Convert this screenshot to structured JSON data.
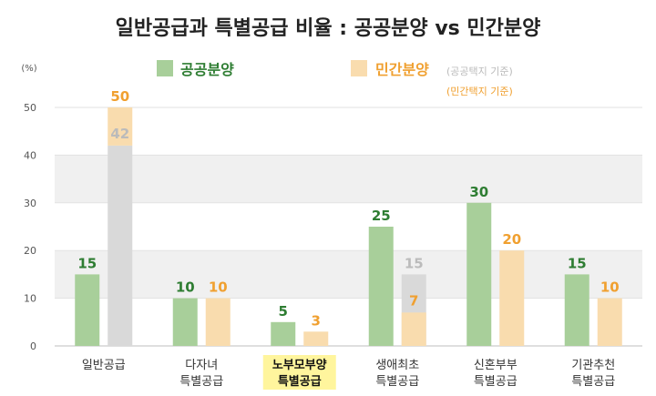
{
  "chart_data": {
    "type": "bar",
    "title": "일반공급과 특별공급 비율 : 공공분양 vs 민간분양",
    "unit_label": "(%)",
    "ylim": [
      0,
      50
    ],
    "yticks": [
      0,
      10,
      20,
      30,
      40,
      50
    ],
    "categories": [
      [
        "일반공급"
      ],
      [
        "다자녀",
        "특별공급"
      ],
      [
        "노부모부양",
        "특별공급"
      ],
      [
        "생애최초",
        "특별공급"
      ],
      [
        "신혼부부",
        "특별공급"
      ],
      [
        "기관추천",
        "특별공급"
      ]
    ],
    "highlight_category_index": 2,
    "series": [
      {
        "name": "공공분양",
        "color": "#a8cf9a",
        "label_color": "#2e7d32",
        "values": [
          15,
          10,
          5,
          25,
          30,
          15
        ]
      },
      {
        "name": "민간분양",
        "legend_note": "(공공택지 기준)",
        "color": "#f9dcae",
        "label_color": "#f0a030",
        "values": [
          50,
          10,
          3,
          7,
          20,
          10
        ],
        "overlay": [
          {
            "category_index": 0,
            "value": 42
          },
          {
            "category_index": 3,
            "value": 15
          }
        ]
      }
    ],
    "overlay_legend_note": "(민간택지 기준)",
    "overlay_color": "#d9d9d9",
    "overlay_label_color": "#bbbbbb",
    "grid": true,
    "band_color": "#f0f0f0",
    "legend_position": "top"
  }
}
